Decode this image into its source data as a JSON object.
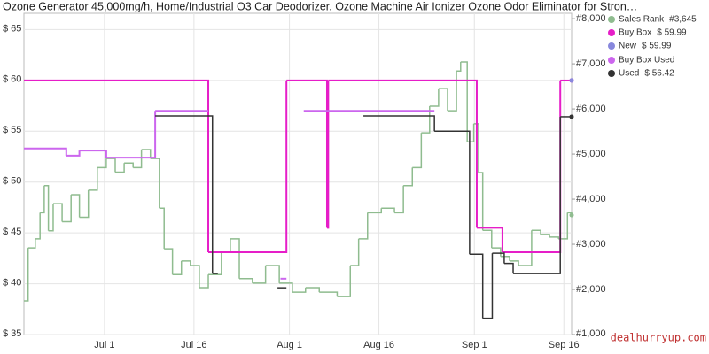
{
  "chart_data": {
    "type": "line",
    "step": true,
    "title": "Ozone Generator 45,000mg/h, Home/Industrial O3 Car Deodorizer. Ozone Machine Air Ionizer Ozone Odor Eliminator for Stron…",
    "watermark": "dealhurryup.com",
    "grid": true,
    "legend": "top-right",
    "xlim": [
      -13.5,
      78.3
    ],
    "xticks": [
      {
        "value": 0,
        "label": "Jul 1"
      },
      {
        "value": 15,
        "label": "Jul 16"
      },
      {
        "value": 31,
        "label": "Aug 1"
      },
      {
        "value": 46,
        "label": "Aug 16"
      },
      {
        "value": 62,
        "label": "Sep 1"
      },
      {
        "value": 77,
        "label": "Sep 16"
      }
    ],
    "ylim": [
      35,
      66.6
    ],
    "yticks": [
      {
        "value": 35,
        "label": "$ 35"
      },
      {
        "value": 40,
        "label": "$ 40"
      },
      {
        "value": 45,
        "label": "$ 45"
      },
      {
        "value": 50,
        "label": "$ 50"
      },
      {
        "value": 55,
        "label": "$ 55"
      },
      {
        "value": 60,
        "label": "$ 60"
      },
      {
        "value": 65,
        "label": "$ 65"
      }
    ],
    "y2lim": [
      1000,
      8120
    ],
    "y2ticks": [
      {
        "value": 1000,
        "label": "#1,000"
      },
      {
        "value": 2000,
        "label": "#2,000"
      },
      {
        "value": 3000,
        "label": "#3,000"
      },
      {
        "value": 4000,
        "label": "#4,000"
      },
      {
        "value": 5000,
        "label": "#5,000"
      },
      {
        "value": 6000,
        "label": "#6,000"
      },
      {
        "value": 7000,
        "label": "#7,000"
      },
      {
        "value": 8000,
        "label": "#8,000"
      }
    ],
    "series": [
      {
        "name": "Sales Rank",
        "current": "#3,645",
        "color": "#8fbc8f",
        "axis": "y2",
        "width": 1.5,
        "x": [
          -13.5,
          -12.8,
          -11.6,
          -10.8,
          -10.1,
          -9.4,
          -8.6,
          -7.1,
          -5.6,
          -4.2,
          -2.7,
          -1.2,
          0.3,
          1.8,
          3.3,
          4.8,
          6.2,
          7.7,
          9.2,
          10.0,
          11.4,
          12.9,
          14.4,
          15.9,
          17.4,
          19.6,
          21.1,
          22.6,
          24.8,
          27.0,
          29.3,
          31.5,
          33.7,
          36.0,
          39.0,
          41.2,
          42.6,
          44.1,
          46.4,
          48.6,
          50.1,
          51.6,
          53.1,
          54.5,
          56.0,
          57.5,
          59.0,
          59.7,
          60.8,
          61.9,
          62.7,
          63.4,
          64.9,
          66.4,
          67.9,
          69.4,
          71.6,
          73.1,
          74.6,
          76.1,
          77.6,
          78.3
        ],
        "values": [
          1745,
          2920,
          3120,
          3700,
          4300,
          3300,
          3900,
          3500,
          4100,
          3600,
          4200,
          4700,
          4900,
          4600,
          4800,
          4700,
          5100,
          4900,
          3800,
          2900,
          2330,
          2630,
          2530,
          2040,
          2330,
          2820,
          3120,
          2240,
          2140,
          2530,
          2140,
          1940,
          2040,
          1940,
          1840,
          2530,
          3120,
          3700,
          3800,
          3700,
          4300,
          4700,
          5470,
          6060,
          6450,
          5960,
          6840,
          7040,
          5270,
          5670,
          4590,
          3310,
          2920,
          2730,
          2630,
          2530,
          3310,
          3220,
          3160,
          3120,
          3700,
          3645
        ]
      },
      {
        "name": "Buy Box",
        "current": "$ 59.99",
        "color": "#e61ec8",
        "width": 2,
        "x": [
          -13.5,
          17.4,
          30.5,
          37.3,
          37.5,
          62.4,
          66.7,
          76.4,
          78.3
        ],
        "values": [
          59.99,
          43.1,
          59.99,
          45.5,
          59.99,
          45.5,
          43.1,
          59.99,
          59.99
        ]
      },
      {
        "name": "New",
        "current": "$ 59.99",
        "color": "#8888dd",
        "width": 2,
        "x": [
          78.3
        ],
        "values": [
          59.99
        ]
      },
      {
        "name": "Buy Box Used",
        "current": "",
        "color": "#cc66ee",
        "width": 2,
        "x": [
          -13.5,
          -6.4,
          -4.2,
          0.3,
          8.5,
          17.4,
          29.5,
          30.5,
          33.4,
          55.3
        ],
        "values": [
          53.3,
          52.6,
          53.1,
          52.4,
          57,
          null,
          40.5,
          null,
          57,
          null
        ]
      },
      {
        "name": "Used",
        "current": "$ 56.42",
        "color": "#333333",
        "width": 1.5,
        "x": [
          8.5,
          18.1,
          19.0,
          29.0,
          30.5,
          43.4,
          55.3,
          61.2,
          63.4,
          65.0,
          67.0,
          68.5,
          76.4,
          78.3
        ],
        "values": [
          56.5,
          41,
          null,
          39.6,
          null,
          56.5,
          55,
          42.9,
          36.6,
          43,
          42,
          41,
          56.42,
          56.42
        ]
      }
    ]
  }
}
